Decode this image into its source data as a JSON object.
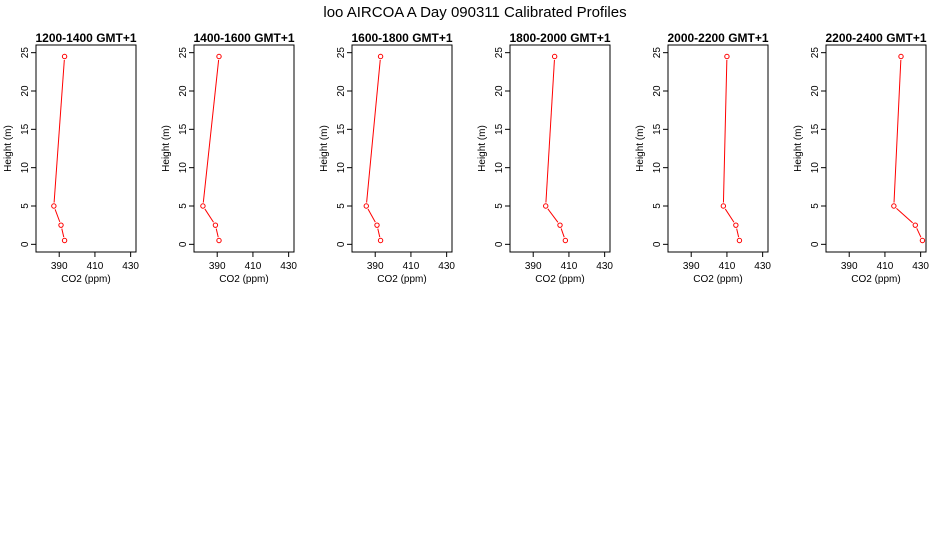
{
  "chart_data": {
    "type": "line",
    "title": "loo AIRCOA A  Day 090311  Calibrated Profiles",
    "xlabel": "CO2 (ppm)",
    "ylabel": "Height (m)",
    "xlim": [
      377,
      433
    ],
    "ylim": [
      -1,
      26
    ],
    "xticks": [
      390,
      410,
      430
    ],
    "yticks": [
      0,
      5,
      10,
      15,
      20,
      25
    ],
    "line_color": "#ff0000",
    "panels": [
      {
        "title": "1200-1400 GMT+1",
        "points": [
          {
            "x": 393,
            "y": 24.5
          },
          {
            "x": 387,
            "y": 5
          },
          {
            "x": 391,
            "y": 2.5
          },
          {
            "x": 393,
            "y": 0.5
          }
        ]
      },
      {
        "title": "1400-1600 GMT+1",
        "points": [
          {
            "x": 391,
            "y": 24.5
          },
          {
            "x": 382,
            "y": 5
          },
          {
            "x": 389,
            "y": 2.5
          },
          {
            "x": 391,
            "y": 0.5
          }
        ]
      },
      {
        "title": "1600-1800 GMT+1",
        "points": [
          {
            "x": 393,
            "y": 24.5
          },
          {
            "x": 385,
            "y": 5
          },
          {
            "x": 391,
            "y": 2.5
          },
          {
            "x": 393,
            "y": 0.5
          }
        ]
      },
      {
        "title": "1800-2000 GMT+1",
        "points": [
          {
            "x": 402,
            "y": 24.5
          },
          {
            "x": 397,
            "y": 5
          },
          {
            "x": 405,
            "y": 2.5
          },
          {
            "x": 408,
            "y": 0.5
          }
        ]
      },
      {
        "title": "2000-2200 GMT+1",
        "points": [
          {
            "x": 410,
            "y": 24.5
          },
          {
            "x": 408,
            "y": 5
          },
          {
            "x": 415,
            "y": 2.5
          },
          {
            "x": 417,
            "y": 0.5
          }
        ]
      },
      {
        "title": "2200-2400 GMT+1",
        "points": [
          {
            "x": 419,
            "y": 24.5
          },
          {
            "x": 415,
            "y": 5
          },
          {
            "x": 427,
            "y": 2.5
          },
          {
            "x": 431,
            "y": 0.5
          }
        ]
      }
    ]
  }
}
